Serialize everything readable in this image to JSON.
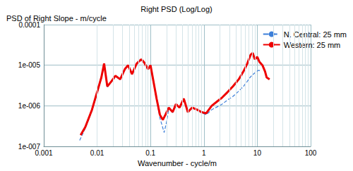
{
  "chart_data": {
    "type": "line",
    "title": "Right PSD (Log/Log)",
    "y_label": "PSD of Right Slope - m/cycle",
    "x_label": "Wavenumber - cycle/m",
    "log": true,
    "grid": true,
    "legend": "upper right",
    "xlim": [
      0.001,
      100
    ],
    "xticks": [
      0.001,
      0.01,
      0.1,
      1,
      10,
      100
    ],
    "ylim": [
      1e-07,
      0.0001
    ],
    "yticks": [
      {
        "value": 1e-07,
        "label": "1e-007"
      },
      {
        "value": 1e-06,
        "label": "1e-006"
      },
      {
        "value": 1e-05,
        "label": "1e-005"
      },
      0.0001
    ],
    "series": [
      {
        "name": "N. Central: 25 mm",
        "color": "#3d7fd9",
        "line_style": "dashed",
        "x": [
          0.0047,
          0.006,
          0.008,
          0.01,
          0.012,
          0.0135,
          0.0155,
          0.0185,
          0.022,
          0.027,
          0.033,
          0.038,
          0.045,
          0.055,
          0.067,
          0.075,
          0.09,
          0.1,
          0.11,
          0.13,
          0.15,
          0.18,
          0.2,
          0.22,
          0.26,
          0.3,
          0.35,
          0.42,
          0.5,
          0.6,
          0.75,
          0.9,
          1.1,
          1.4,
          1.8,
          2.2,
          2.8,
          3.5,
          4.5,
          5.5,
          6.5,
          7.5,
          9,
          10.5,
          12
        ],
        "values": [
          1.4e-07,
          2.8e-07,
          7.5e-07,
          2e-06,
          4.8e-06,
          1.05e-05,
          2.9e-06,
          3.9e-06,
          5.3e-06,
          4.4e-06,
          7.8e-06,
          9.8e-06,
          5.9e-06,
          1.05e-05,
          1.35e-05,
          1.15e-05,
          7.8e-06,
          9.5e-06,
          4.8e-06,
          1.4e-06,
          5e-07,
          2.2e-07,
          4e-07,
          8.5e-07,
          6.8e-07,
          1.05e-06,
          8.8e-07,
          1.45e-06,
          6.8e-07,
          8.8e-07,
          7.8e-07,
          6.8e-07,
          6e-07,
          8e-07,
          9.5e-07,
          1.1e-06,
          1.4e-06,
          1.7e-06,
          2.3e-06,
          3e-06,
          4e-06,
          5.2e-06,
          6.5e-06,
          7.5e-06,
          7.2e-06
        ]
      },
      {
        "name": "Western: 25 mm",
        "color": "#ee0000",
        "line_style": "solid",
        "x": [
          0.0049,
          0.006,
          0.008,
          0.01,
          0.012,
          0.0135,
          0.0155,
          0.0185,
          0.022,
          0.027,
          0.033,
          0.038,
          0.045,
          0.055,
          0.067,
          0.075,
          0.09,
          0.1,
          0.11,
          0.13,
          0.15,
          0.17,
          0.19,
          0.22,
          0.26,
          0.3,
          0.35,
          0.42,
          0.5,
          0.6,
          0.75,
          0.9,
          1.1,
          1.4,
          1.8,
          2.2,
          2.8,
          3.5,
          4.5,
          5.5,
          6.5,
          7.5,
          8.2,
          9,
          10,
          11,
          12.5,
          14,
          15,
          17
        ],
        "values": [
          1.9e-07,
          3e-07,
          8e-07,
          2.2e-06,
          5e-06,
          1.1e-05,
          3e-06,
          4e-06,
          5.5e-06,
          4.5e-06,
          8e-06,
          1e-05,
          6e-06,
          1.1e-05,
          1.4e-05,
          1.2e-05,
          8e-06,
          1e-05,
          5e-06,
          1.5e-06,
          6e-07,
          4.5e-07,
          6e-07,
          9e-07,
          7e-07,
          1.1e-06,
          9e-07,
          1.5e-06,
          7e-07,
          9e-07,
          8e-07,
          7e-07,
          6.5e-07,
          1e-06,
          1.3e-06,
          1.6e-06,
          2.2e-06,
          3e-06,
          4.5e-06,
          7e-06,
          1.1e-05,
          1.8e-05,
          2e-05,
          1.4e-05,
          1.6e-05,
          1.2e-05,
          1e-05,
          7e-06,
          5e-06,
          4.5e-06
        ]
      }
    ]
  }
}
